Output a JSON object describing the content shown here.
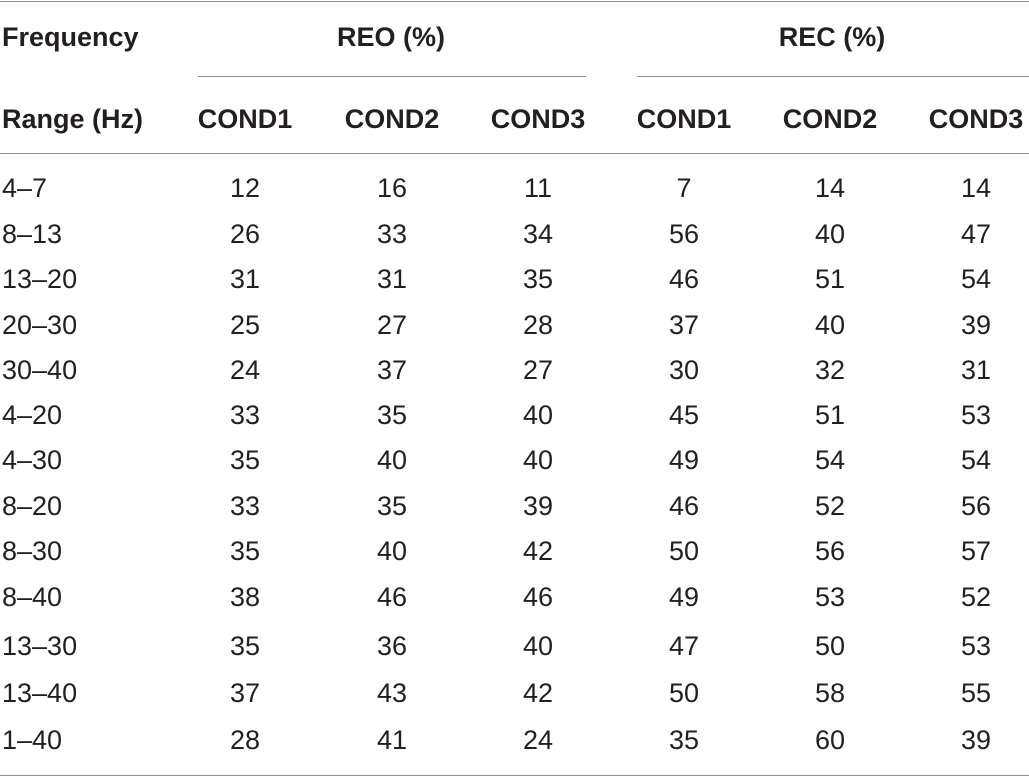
{
  "table": {
    "header": {
      "row_label_line1": "Frequency",
      "row_label_line2": "Range (Hz)",
      "groups": [
        {
          "label": "REO (%)",
          "conditions": [
            "COND1",
            "COND2",
            "COND3"
          ]
        },
        {
          "label": "REC (%)",
          "conditions": [
            "COND1",
            "COND2",
            "COND3"
          ]
        }
      ]
    },
    "rows": [
      {
        "range": "4–7",
        "values": [
          "12",
          "16",
          "11",
          "7",
          "14",
          "14"
        ]
      },
      {
        "range": "8–13",
        "values": [
          "26",
          "33",
          "34",
          "56",
          "40",
          "47"
        ]
      },
      {
        "range": "13–20",
        "values": [
          "31",
          "31",
          "35",
          "46",
          "51",
          "54"
        ]
      },
      {
        "range": "20–30",
        "values": [
          "25",
          "27",
          "28",
          "37",
          "40",
          "39"
        ]
      },
      {
        "range": "30–40",
        "values": [
          "24",
          "37",
          "27",
          "30",
          "32",
          "31"
        ]
      },
      {
        "range": "4–20",
        "values": [
          "33",
          "35",
          "40",
          "45",
          "51",
          "53"
        ]
      },
      {
        "range": "4–30",
        "values": [
          "35",
          "40",
          "40",
          "49",
          "54",
          "54"
        ]
      },
      {
        "range": "8–20",
        "values": [
          "33",
          "35",
          "39",
          "46",
          "52",
          "56"
        ]
      },
      {
        "range": "8–30",
        "values": [
          "35",
          "40",
          "42",
          "50",
          "56",
          "57"
        ]
      },
      {
        "range": "8–40",
        "values": [
          "38",
          "46",
          "46",
          "49",
          "53",
          "52"
        ]
      },
      {
        "range": "13–30",
        "values": [
          "35",
          "36",
          "40",
          "47",
          "50",
          "53"
        ]
      },
      {
        "range": "13–40",
        "values": [
          "37",
          "43",
          "42",
          "50",
          "58",
          "55"
        ]
      },
      {
        "range": "1–40",
        "values": [
          "28",
          "41",
          "24",
          "35",
          "60",
          "39"
        ]
      }
    ]
  }
}
